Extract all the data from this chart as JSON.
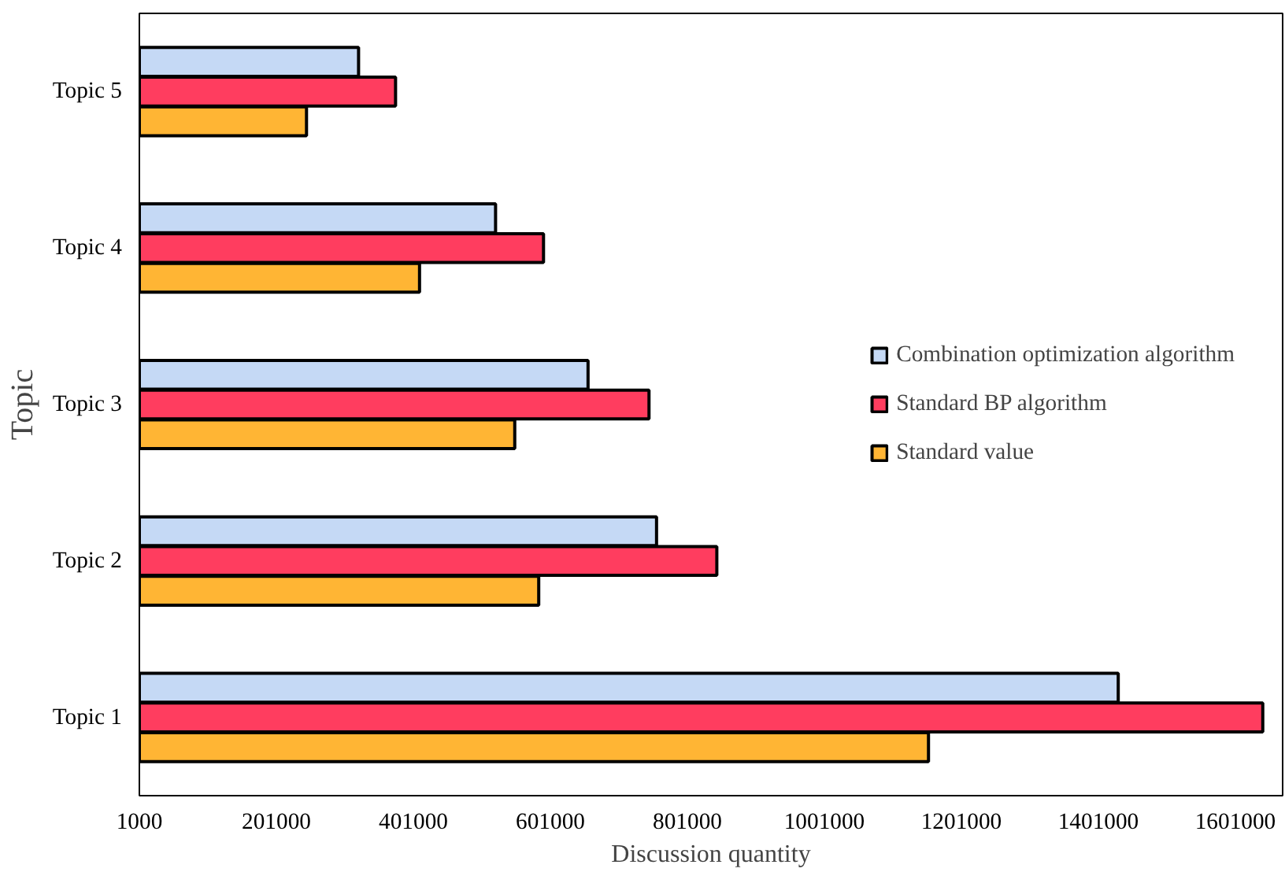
{
  "chart_data": {
    "type": "bar",
    "orientation": "horizontal",
    "xlabel": "Discussion quantity",
    "ylabel": "Topic",
    "categories": [
      "Topic 5",
      "Topic 4",
      "Topic 3",
      "Topic 2",
      "Topic 1"
    ],
    "series": [
      {
        "name": "Combination optimization algorithm",
        "color": "#c5d9f5",
        "values": [
          321000,
          521000,
          656000,
          756000,
          1430000
        ]
      },
      {
        "name": "Standard BP algorithm",
        "color": "#ff3d5f",
        "values": [
          375000,
          591000,
          745000,
          844000,
          1641000
        ]
      },
      {
        "name": "Standard value",
        "color": "#ffb534",
        "values": [
          245000,
          410000,
          549000,
          584000,
          1153000
        ]
      }
    ],
    "xlim": [
      1000,
      1670000
    ],
    "xticks": [
      1000,
      201000,
      401000,
      601000,
      801000,
      1001000,
      1201000,
      1401000,
      1601000
    ],
    "grid": false,
    "legend": "right"
  }
}
